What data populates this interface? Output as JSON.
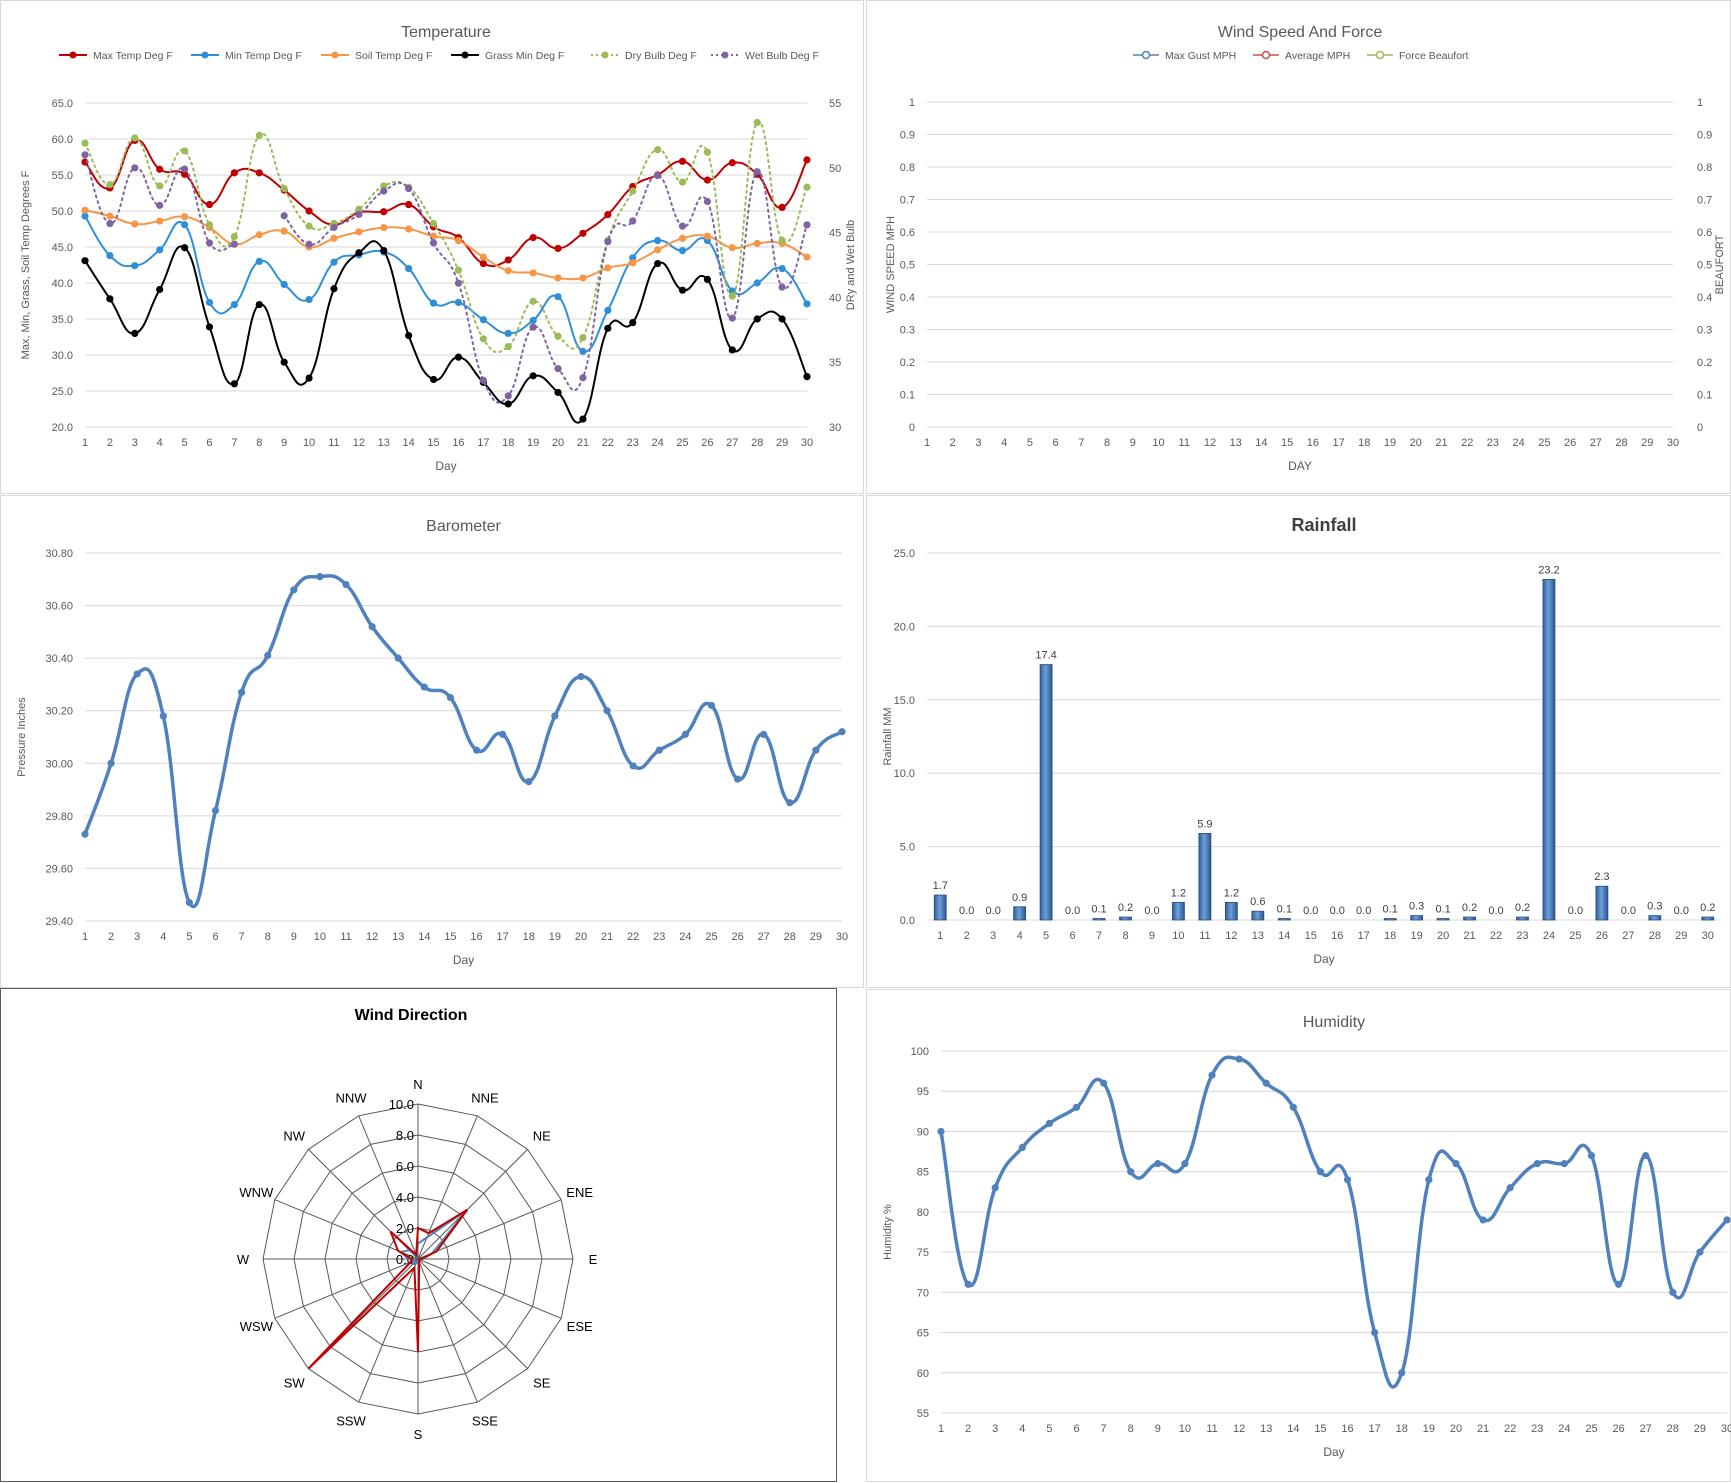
{
  "days": [
    "1",
    "2",
    "3",
    "4",
    "5",
    "6",
    "7",
    "8",
    "9",
    "10",
    "11",
    "12",
    "13",
    "14",
    "15",
    "16",
    "17",
    "18",
    "19",
    "20",
    "21",
    "22",
    "23",
    "24",
    "25",
    "26",
    "27",
    "28",
    "29",
    "30"
  ],
  "chart_data": [
    {
      "id": "temperature",
      "type": "line",
      "title": "Temperature",
      "xlabel": "Day",
      "ylabel": "Max, Min, Grass, Soil Temp Degrees F",
      "y2label": "DRy and Wet Bulb",
      "ylim": [
        20,
        65
      ],
      "y2lim": [
        30,
        55
      ],
      "yticks": [
        "20.0",
        "25.0",
        "30.0",
        "35.0",
        "40.0",
        "45.0",
        "50.0",
        "55.0",
        "60.0",
        "65.0"
      ],
      "y2ticks": [
        "30",
        "35",
        "40",
        "45",
        "50",
        "55"
      ],
      "legend_position": "top",
      "series": [
        {
          "name": "Max Temp Deg F",
          "color": "#c00000",
          "axis": "left",
          "dotted": false,
          "values": [
            56.8,
            53.2,
            59.8,
            55.8,
            55.1,
            50.9,
            55.3,
            55.3,
            52.9,
            50.0,
            48.1,
            49.8,
            49.9,
            50.9,
            47.8,
            46.3,
            42.7,
            43.2,
            46.3,
            44.8,
            46.9,
            49.5,
            53.4,
            55.0,
            56.9,
            54.3,
            56.7,
            55.1,
            50.5,
            57.1
          ]
        },
        {
          "name": "Min Temp Deg F",
          "color": "#2e8fd8",
          "axis": "left",
          "dotted": false,
          "values": [
            49.3,
            43.8,
            42.4,
            44.6,
            48.1,
            37.3,
            37.0,
            43.0,
            39.8,
            37.7,
            42.9,
            43.9,
            44.3,
            42.0,
            37.2,
            37.3,
            34.9,
            33.0,
            34.8,
            38.1,
            30.5,
            36.2,
            43.5,
            45.9,
            44.5,
            45.9,
            38.9,
            40.0,
            42.0,
            37.1
          ]
        },
        {
          "name": "Soil Temp Deg F",
          "color": "#f79646",
          "axis": "left",
          "dotted": false,
          "values": [
            50.1,
            49.3,
            48.2,
            48.6,
            49.2,
            47.7,
            45.4,
            46.7,
            47.2,
            45.0,
            46.2,
            47.1,
            47.7,
            47.5,
            46.5,
            45.9,
            43.6,
            41.7,
            41.4,
            40.7,
            40.7,
            42.1,
            42.8,
            44.6,
            46.2,
            46.5,
            44.9,
            45.5,
            45.5,
            43.6
          ]
        },
        {
          "name": "Grass Min Deg F",
          "color": "#000000",
          "axis": "left",
          "dotted": false,
          "values": [
            43.1,
            37.8,
            33.0,
            39.1,
            44.9,
            33.9,
            26.0,
            37.0,
            29.0,
            26.8,
            39.2,
            44.2,
            44.5,
            32.7,
            26.6,
            29.7,
            26.2,
            23.2,
            27.1,
            24.8,
            21.1,
            33.7,
            34.5,
            42.7,
            39.0,
            40.5,
            30.7,
            35.0,
            35.0,
            27.0
          ]
        },
        {
          "name": "Dry Bulb Deg F",
          "color": "#9bbb59",
          "axis": "right",
          "dotted": true,
          "values": [
            51.9,
            48.7,
            52.3,
            48.6,
            51.3,
            45.6,
            44.7,
            52.5,
            48.4,
            45.5,
            45.7,
            46.8,
            48.6,
            48.5,
            45.7,
            42.1,
            36.8,
            36.2,
            39.7,
            37.0,
            36.9,
            44.4,
            48.2,
            51.4,
            48.9,
            51.2,
            40.1,
            53.5,
            44.4,
            48.5
          ]
        },
        {
          "name": "Wet Bulb Deg F",
          "color": "#8064a2",
          "axis": "right",
          "dotted": true,
          "values": [
            51.0,
            45.7,
            50.0,
            47.1,
            49.9,
            44.2,
            44.1,
            null,
            46.3,
            44.1,
            45.4,
            46.4,
            48.2,
            48.4,
            44.2,
            41.1,
            33.6,
            32.4,
            37.7,
            34.5,
            33.8,
            44.3,
            45.9,
            49.4,
            45.5,
            47.4,
            38.4,
            49.7,
            40.8,
            45.6
          ]
        }
      ]
    },
    {
      "id": "wind",
      "type": "line",
      "title": "Wind Speed And Force",
      "xlabel": "DAY",
      "ylabel": "WIND SPEED MPH",
      "y2label": "BEAUFORT",
      "ylim": [
        0,
        1
      ],
      "y2lim": [
        0,
        1
      ],
      "yticks": [
        "0",
        "0.1",
        "0.2",
        "0.3",
        "0.4",
        "0.5",
        "0.6",
        "0.7",
        "0.8",
        "0.9",
        "1"
      ],
      "y2ticks": [
        "0",
        "0.1",
        "0.2",
        "0.3",
        "0.4",
        "0.5",
        "0.6",
        "0.7",
        "0.8",
        "0.9",
        "1"
      ],
      "legend_position": "top",
      "series": [
        {
          "name": "Max Gust MPH",
          "color": "#4f81bd",
          "values": []
        },
        {
          "name": "Average MPH",
          "color": "#c0504d",
          "values": []
        },
        {
          "name": "Force Beaufort",
          "color": "#9bbb59",
          "values": []
        }
      ]
    },
    {
      "id": "barometer",
      "type": "line",
      "title": "Barometer",
      "xlabel": "Day",
      "ylabel": "Pressure Inches",
      "ylim": [
        29.4,
        30.8
      ],
      "yticks": [
        "29.40",
        "29.60",
        "29.80",
        "30.00",
        "30.20",
        "30.40",
        "30.60",
        "30.80"
      ],
      "color": "#4f81bd",
      "values": [
        29.73,
        30.0,
        30.34,
        30.18,
        29.47,
        29.82,
        30.27,
        30.41,
        30.66,
        30.71,
        30.68,
        30.52,
        30.4,
        30.29,
        30.25,
        30.05,
        30.11,
        29.93,
        30.18,
        30.33,
        30.2,
        29.99,
        30.05,
        30.11,
        30.22,
        29.94,
        30.11,
        29.85,
        30.05,
        30.12
      ]
    },
    {
      "id": "rainfall",
      "type": "bar",
      "title": "Rainfall",
      "xlabel": "Day",
      "ylabel": "Rainfall MM",
      "ylim": [
        0,
        25
      ],
      "yticks": [
        "0.0",
        "5.0",
        "10.0",
        "15.0",
        "20.0",
        "25.0"
      ],
      "color": "#4f81bd",
      "values": [
        1.7,
        0.0,
        0.0,
        0.9,
        17.4,
        0.0,
        0.1,
        0.2,
        0.0,
        1.2,
        5.9,
        1.2,
        0.6,
        0.1,
        0.0,
        0.0,
        0.0,
        0.1,
        0.3,
        0.1,
        0.2,
        0.0,
        0.2,
        23.2,
        0.0,
        2.3,
        0.0,
        0.3,
        0.0,
        0.2
      ],
      "data_labels": [
        "1.7",
        "0.0",
        "0.0",
        "0.9",
        "17.4",
        "0.0",
        "0.1",
        "0.2",
        "0.0",
        "1.2",
        "5.9",
        "1.2",
        "0.6",
        "0.1",
        "0.0",
        "0.0",
        "0.0",
        "0.1",
        "0.3",
        "0.1",
        "0.2",
        "0.0",
        "0.2",
        "23.2",
        "0.0",
        "2.3",
        "0.0",
        "0.3",
        "0.0",
        "0.2"
      ]
    },
    {
      "id": "wind_direction",
      "type": "radar",
      "title": "Wind Direction",
      "directions": [
        "N",
        "NNE",
        "NE",
        "ENE",
        "E",
        "ESE",
        "SE",
        "SSE",
        "S",
        "SSW",
        "SW",
        "WSW",
        "W",
        "WNW",
        "NW",
        "NNW"
      ],
      "rlim": [
        0,
        10
      ],
      "rticks": [
        "0.0",
        "2.0",
        "4.0",
        "6.0",
        "8.0",
        "10.0"
      ],
      "series": [
        {
          "color": "#4f81bd",
          "values": [
            1.0,
            1.5,
            4.5,
            1.0,
            0.3,
            0.1,
            0.1,
            0.1,
            0.1,
            0.3,
            0.5,
            0.3,
            0.6,
            1.2,
            0.8,
            0.2
          ]
        },
        {
          "color": "#c00000",
          "values": [
            2.0,
            1.8,
            4.5,
            1.3,
            0.2,
            0.1,
            0.1,
            0.2,
            6.0,
            0.6,
            10.0,
            0.5,
            0.4,
            1.4,
            2.5,
            0.3
          ]
        }
      ]
    },
    {
      "id": "humidity",
      "type": "line",
      "title": "Humidity",
      "xlabel": "Day",
      "ylabel": "Humidity %",
      "ylim": [
        55,
        100
      ],
      "yticks": [
        "55",
        "60",
        "65",
        "70",
        "75",
        "80",
        "85",
        "90",
        "95",
        "100"
      ],
      "color": "#4f81bd",
      "values": [
        90,
        71,
        83,
        88,
        91,
        93,
        96,
        85,
        86,
        86,
        97,
        99,
        96,
        93,
        85,
        84,
        65,
        60,
        84,
        86,
        79,
        83,
        86,
        86,
        87,
        71,
        87,
        70,
        75,
        79
      ]
    }
  ]
}
